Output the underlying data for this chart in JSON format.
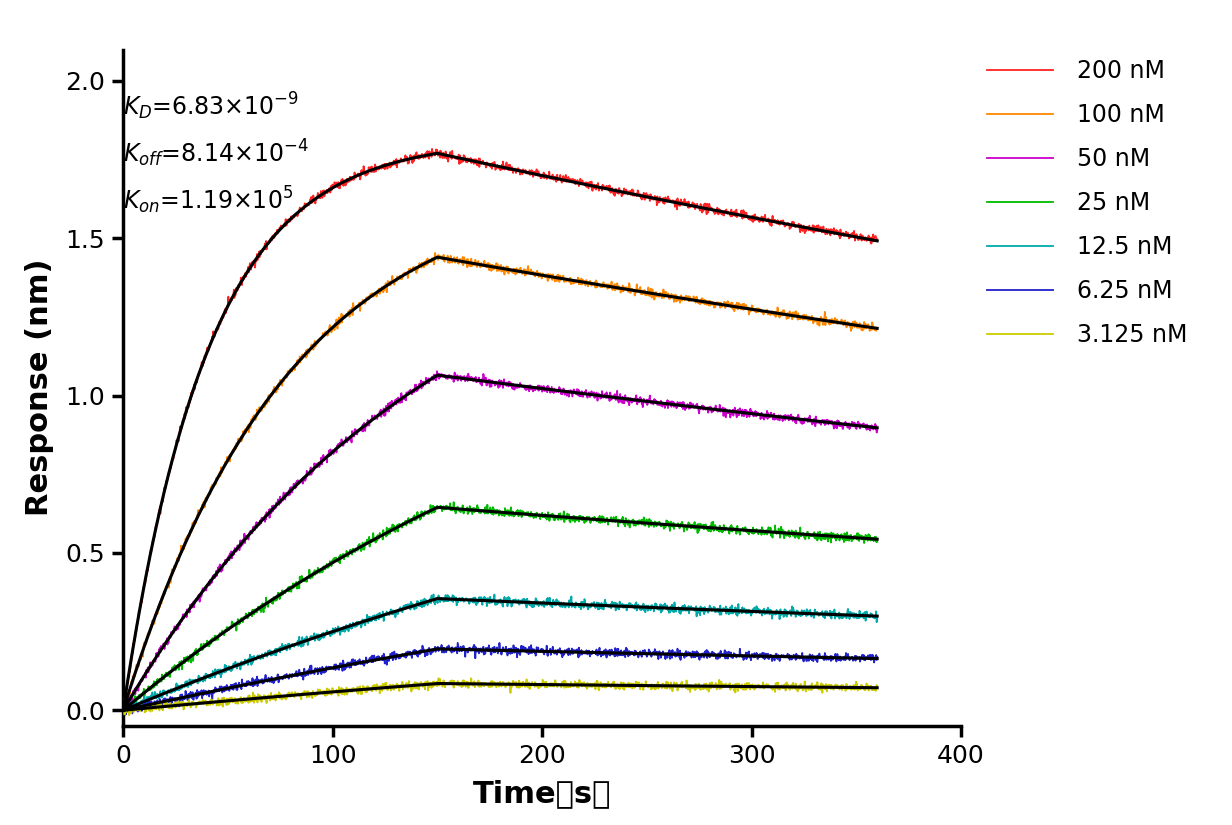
{
  "ylabel": "Response (nm)",
  "xlim": [
    0,
    400
  ],
  "ylim": [
    -0.05,
    2.1
  ],
  "xticks": [
    0,
    100,
    200,
    300,
    400
  ],
  "yticks": [
    0.0,
    0.5,
    1.0,
    1.5,
    2.0
  ],
  "concentrations": [
    200,
    100,
    50,
    25,
    12.5,
    6.25,
    3.125
  ],
  "colors": [
    "#ff2222",
    "#ff8800",
    "#cc00cc",
    "#00bb00",
    "#00aaaa",
    "#2222cc",
    "#cccc00"
  ],
  "assoc_end": 150,
  "dissoc_end": 360,
  "max_responses": [
    1.77,
    1.44,
    1.065,
    0.645,
    0.355,
    0.195,
    0.085
  ],
  "kon": 119000,
  "koff": 0.000814,
  "background_color": "#ffffff",
  "fit_color": "#000000",
  "fit_lw": 2.2,
  "data_lw": 1.3,
  "noise_amplitude": 0.007
}
